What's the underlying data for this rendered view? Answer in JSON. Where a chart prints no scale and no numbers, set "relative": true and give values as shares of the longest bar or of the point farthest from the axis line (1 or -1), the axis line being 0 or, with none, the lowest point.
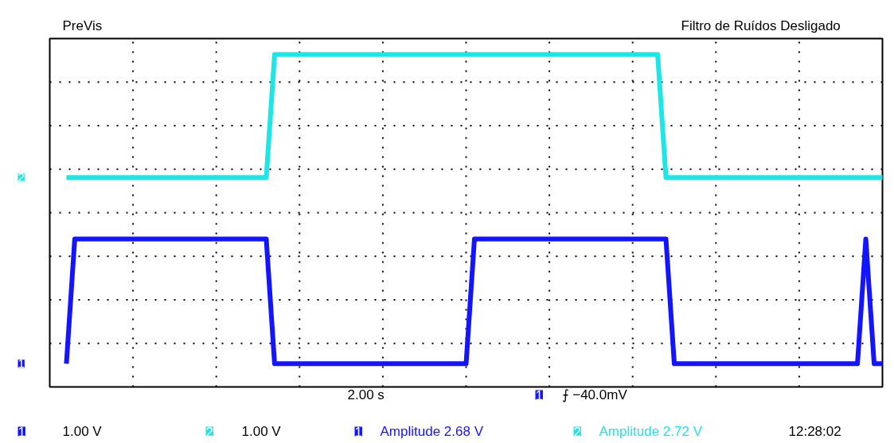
{
  "chart_data": {
    "type": "line",
    "relative": true,
    "grid": true,
    "legend": false,
    "categories": [
      null,
      null,
      null,
      null,
      null,
      null,
      null,
      null,
      null,
      null,
      null,
      null,
      null,
      null,
      null,
      null,
      null,
      null,
      null,
      null,
      null,
      null,
      null,
      null,
      null,
      null,
      null,
      null,
      null,
      null,
      null,
      null,
      null,
      null,
      null,
      null,
      null,
      null,
      null,
      null,
      null,
      null,
      null,
      null,
      null,
      null,
      null,
      null,
      null,
      null,
      null,
      null,
      null,
      null,
      null,
      null,
      null,
      null,
      null,
      null,
      null,
      null,
      null,
      null,
      null,
      null,
      null,
      null,
      null,
      null,
      null,
      null,
      null,
      null,
      null,
      null,
      null,
      null,
      null,
      null,
      null,
      null,
      null,
      null,
      null,
      null,
      null,
      null,
      null,
      null,
      null,
      null,
      null,
      null,
      null,
      null,
      null,
      null,
      null,
      null,
      null
    ],
    "series": [
      {
        "name": "2",
        "color": "#1ee6e6",
        "values": [
          null,
          null,
          0.63,
          0.63,
          0.63,
          0.63,
          0.63,
          0.63,
          0.63,
          0.63,
          0.63,
          0.63,
          0.63,
          0.63,
          0.63,
          0.63,
          0.63,
          0.63,
          0.63,
          0.63,
          0.63,
          0.63,
          0.63,
          0.63,
          0.63,
          0.63,
          0.63,
          1,
          1,
          1,
          1,
          1,
          1,
          1,
          1,
          1,
          1,
          1,
          1,
          1,
          1,
          1,
          1,
          1,
          1,
          1,
          1,
          1,
          1,
          1,
          1,
          1,
          1,
          1,
          1,
          1,
          1,
          1,
          1,
          1,
          1,
          1,
          1,
          1,
          1,
          1,
          1,
          1,
          1,
          1,
          1,
          1,
          1,
          1,
          0.63,
          0.63,
          0.63,
          0.63,
          0.63,
          0.63,
          0.63,
          0.63,
          0.63,
          0.63,
          0.63,
          0.63,
          0.63,
          0.63,
          0.63,
          0.63,
          0.63,
          0.63,
          0.63,
          0.63,
          0.63,
          0.63,
          0.63,
          0.63,
          0.63,
          0.63,
          0.63
        ]
      },
      {
        "name": "1",
        "color": "#1414ff",
        "values": [
          null,
          null,
          0.07,
          0.445,
          0.445,
          0.445,
          0.445,
          0.445,
          0.445,
          0.445,
          0.445,
          0.445,
          0.445,
          0.445,
          0.445,
          0.445,
          0.445,
          0.445,
          0.445,
          0.445,
          0.445,
          0.445,
          0.445,
          0.445,
          0.445,
          0.445,
          0.445,
          0.07,
          0.07,
          0.07,
          0.07,
          0.07,
          0.07,
          0.07,
          0.07,
          0.07,
          0.07,
          0.07,
          0.07,
          0.07,
          0.07,
          0.07,
          0.07,
          0.07,
          0.07,
          0.07,
          0.07,
          0.07,
          0.07,
          0.07,
          0.07,
          0.445,
          0.445,
          0.445,
          0.445,
          0.445,
          0.445,
          0.445,
          0.445,
          0.445,
          0.445,
          0.445,
          0.445,
          0.445,
          0.445,
          0.445,
          0.445,
          0.445,
          0.445,
          0.445,
          0.445,
          0.445,
          0.445,
          0.445,
          0.445,
          0.07,
          0.07,
          0.07,
          0.07,
          0.07,
          0.07,
          0.07,
          0.07,
          0.07,
          0.07,
          0.07,
          0.07,
          0.07,
          0.07,
          0.07,
          0.07,
          0.07,
          0.07,
          0.07,
          0.07,
          0.07,
          0.07,
          0.07,
          0.445,
          0.07,
          0.07
        ]
      }
    ],
    "annotations": [
      "PreVis",
      "Filtro de Ruídos Desligado",
      "2.00 s",
      "1",
      "⨍ −40.0mV",
      "1",
      "1.00 V",
      "2",
      "1.00 V",
      "1",
      "Amplitude 2.68 V",
      "2",
      "Amplitude 2.72 V",
      "12:28:02"
    ]
  }
}
